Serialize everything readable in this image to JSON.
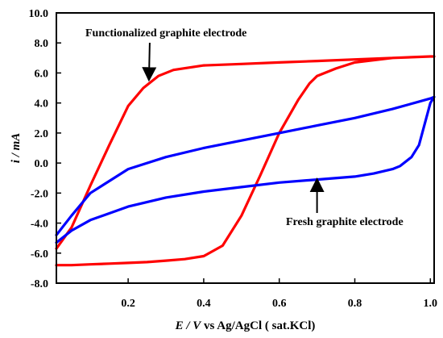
{
  "chart_data": {
    "type": "line",
    "xlabel": {
      "italic": "E / V",
      "rest": " vs Ag/AgCl ( sat.KCl)"
    },
    "ylabel": {
      "italic": "i / mA"
    },
    "xlim": [
      0.01,
      1.01
    ],
    "ylim": [
      -8.0,
      10.0
    ],
    "xticks": [
      0.2,
      0.4,
      0.6,
      0.8,
      1.0
    ],
    "xtick_labels": [
      "0.2",
      "0.4",
      "0.6",
      "0.8",
      "1.0"
    ],
    "yticks": [
      -8.0,
      -6.0,
      -4.0,
      -2.0,
      0.0,
      2.0,
      4.0,
      6.0,
      8.0,
      10.0
    ],
    "ytick_labels": [
      "-8.0",
      "-6.0",
      "-4.0",
      "-2.0",
      "0.0",
      "2.0",
      "4.0",
      "6.0",
      "8.0",
      "10.0"
    ],
    "grid": false,
    "legend": "none",
    "annotations": [
      {
        "text": "Functionalized graphite electrode",
        "arrow_to": [
          0.255,
          5.3
        ],
        "color": "#000000"
      },
      {
        "text": "Fresh graphite electrode",
        "arrow_to": [
          0.7,
          -0.9
        ],
        "color": "#000000"
      }
    ],
    "series": [
      {
        "color": "#ff0000",
        "x": [
          0.01,
          0.05,
          0.1,
          0.15,
          0.2,
          0.24,
          0.26,
          0.28,
          0.32,
          0.4,
          0.5,
          0.6,
          0.7,
          0.8,
          0.9,
          1.0,
          1.01,
          1.0,
          0.9,
          0.8,
          0.75,
          0.7,
          0.68,
          0.65,
          0.6,
          0.55,
          0.5,
          0.45,
          0.4,
          0.35,
          0.3,
          0.25,
          0.2,
          0.15,
          0.1,
          0.05,
          0.01
        ],
        "y": [
          -5.7,
          -4.3,
          -1.5,
          1.2,
          3.8,
          5.0,
          5.4,
          5.8,
          6.2,
          6.5,
          6.6,
          6.7,
          6.8,
          6.9,
          7.0,
          7.1,
          7.1,
          7.1,
          7.0,
          6.7,
          6.3,
          5.8,
          5.3,
          4.2,
          2.0,
          -0.8,
          -3.5,
          -5.5,
          -6.2,
          -6.4,
          -6.5,
          -6.6,
          -6.65,
          -6.7,
          -6.75,
          -6.8,
          -6.8
        ]
      },
      {
        "color": "#0000ff",
        "x": [
          0.01,
          0.05,
          0.1,
          0.2,
          0.3,
          0.4,
          0.5,
          0.6,
          0.7,
          0.8,
          0.9,
          1.0,
          1.01,
          1.0,
          0.97,
          0.95,
          0.92,
          0.9,
          0.85,
          0.8,
          0.7,
          0.6,
          0.5,
          0.4,
          0.3,
          0.2,
          0.1,
          0.05,
          0.01
        ],
        "y": [
          -4.8,
          -3.5,
          -2.0,
          -0.4,
          0.4,
          1.0,
          1.5,
          2.0,
          2.5,
          3.0,
          3.6,
          4.3,
          4.4,
          4.0,
          1.2,
          0.4,
          -0.2,
          -0.4,
          -0.7,
          -0.9,
          -1.1,
          -1.3,
          -1.6,
          -1.9,
          -2.3,
          -2.9,
          -3.8,
          -4.5,
          -5.3
        ]
      }
    ]
  }
}
